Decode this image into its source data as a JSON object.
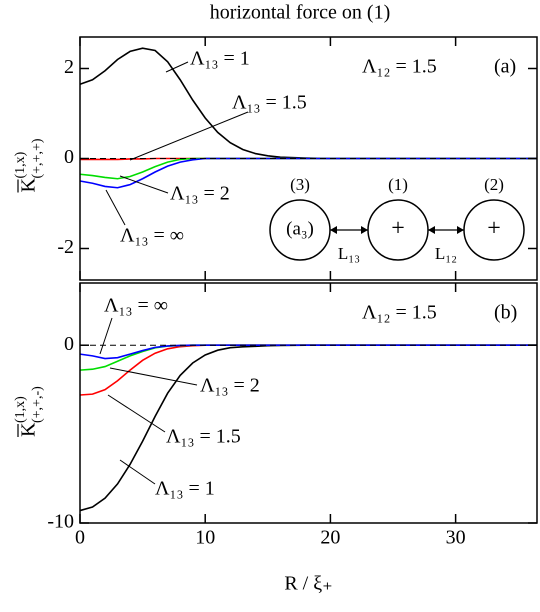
{
  "chart_data": [
    {
      "type": "line",
      "title": "horizontal force on (1)",
      "y_label": {
        "base": "K",
        "superscript": "(1,x)",
        "subscript": "(+,+,+)"
      },
      "panel_label": "(a)",
      "parameter_label": "Λ₁₂ = 1.5",
      "x": [
        0,
        1,
        2,
        3,
        4,
        5,
        6,
        7,
        8,
        9,
        10,
        11,
        12,
        13,
        14,
        15,
        16,
        18,
        20,
        25,
        30,
        36.5
      ],
      "series": [
        {
          "name": "Λ₁₃ = 1",
          "color": "#000000",
          "values": [
            1.65,
            1.75,
            1.95,
            2.2,
            2.38,
            2.45,
            2.4,
            2.15,
            1.75,
            1.3,
            0.9,
            0.58,
            0.35,
            0.2,
            0.11,
            0.06,
            0.03,
            0.01,
            0,
            0,
            0,
            0
          ]
        },
        {
          "name": "Λ₁₃ = 1.5",
          "color": "#ff0000",
          "values": [
            -0.02,
            -0.02,
            -0.02,
            -0.02,
            -0.01,
            -0.01,
            0,
            0,
            0,
            0,
            0,
            0,
            0,
            0,
            0,
            0,
            0,
            0,
            0,
            0,
            0,
            0
          ]
        },
        {
          "name": "Λ₁₃ = 2",
          "color": "#00dd00",
          "values": [
            -0.35,
            -0.38,
            -0.42,
            -0.45,
            -0.4,
            -0.3,
            -0.18,
            -0.08,
            -0.02,
            0,
            0,
            0,
            0,
            0,
            0,
            0,
            0,
            0,
            0,
            0,
            0,
            0
          ]
        },
        {
          "name": "Λ₁₃ = ∞",
          "color": "#0000ff",
          "values": [
            -0.5,
            -0.55,
            -0.62,
            -0.65,
            -0.58,
            -0.45,
            -0.3,
            -0.17,
            -0.08,
            -0.03,
            0,
            0,
            0,
            0,
            0,
            0,
            0,
            0,
            0,
            0,
            0,
            0
          ]
        }
      ],
      "annotations": [
        "Λ₁₃ = 1",
        "Λ₁₃ = 1.5",
        "Λ₁₃ = 2",
        "Λ₁₃ = ∞"
      ],
      "xlim": [
        0,
        36.5
      ],
      "ylim": [
        -2.7,
        2.7
      ],
      "xticks": [
        0,
        10,
        20,
        30
      ],
      "yticks": [
        -2,
        0,
        2
      ],
      "diagram": {
        "particles": [
          "(3)",
          "(1)",
          "(2)"
        ],
        "inner": [
          "(a₃)",
          "+",
          "+"
        ],
        "distances": [
          "L₁₃",
          "L₁₂"
        ]
      }
    },
    {
      "type": "line",
      "x_label": "R / ξ₊",
      "y_label": {
        "base": "K",
        "superscript": "(1,x)",
        "subscript": "(+,+,-)"
      },
      "panel_label": "(b)",
      "parameter_label": "Λ₁₂ = 1.5",
      "x": [
        0,
        1,
        2,
        3,
        4,
        5,
        6,
        7,
        8,
        9,
        10,
        11,
        12,
        13,
        14,
        15,
        16,
        18,
        20,
        25,
        30,
        36.5
      ],
      "series": [
        {
          "name": "Λ₁₃ = 1",
          "color": "#000000",
          "values": [
            -9.3,
            -9.1,
            -8.6,
            -7.8,
            -6.7,
            -5.4,
            -4.0,
            -2.7,
            -1.7,
            -1.0,
            -0.55,
            -0.28,
            -0.14,
            -0.09,
            -0.06,
            -0.03,
            -0.01,
            0,
            0,
            0,
            0,
            0
          ]
        },
        {
          "name": "Λ₁₃ = 1.5",
          "color": "#ff0000",
          "values": [
            -2.8,
            -2.75,
            -2.5,
            -2.0,
            -1.4,
            -0.85,
            -0.45,
            -0.2,
            -0.08,
            -0.03,
            0,
            0,
            0,
            0,
            0,
            0,
            0,
            0,
            0,
            0,
            0,
            0
          ]
        },
        {
          "name": "Λ₁₃ = 2",
          "color": "#00dd00",
          "values": [
            -1.4,
            -1.35,
            -1.2,
            -0.9,
            -0.6,
            -0.35,
            -0.15,
            -0.05,
            -0.02,
            0,
            0,
            0,
            0,
            0,
            0,
            0,
            0,
            0,
            0,
            0,
            0,
            0
          ]
        },
        {
          "name": "Λ₁₃ = ∞",
          "color": "#0000ff",
          "values": [
            -0.5,
            -0.6,
            -0.75,
            -0.7,
            -0.5,
            -0.3,
            -0.12,
            -0.04,
            -0.01,
            0,
            0,
            0,
            0,
            0,
            0,
            0,
            0,
            0,
            0,
            0,
            0,
            0
          ]
        }
      ],
      "annotations": [
        "Λ₁₃ = ∞",
        "Λ₁₃ = 2",
        "Λ₁₃ = 1.5",
        "Λ₁₃ = 1"
      ],
      "xlim": [
        0,
        36.5
      ],
      "ylim": [
        -10,
        3.5
      ],
      "xticks": [
        0,
        10,
        20,
        30
      ],
      "yticks": [
        -10,
        0
      ]
    }
  ]
}
